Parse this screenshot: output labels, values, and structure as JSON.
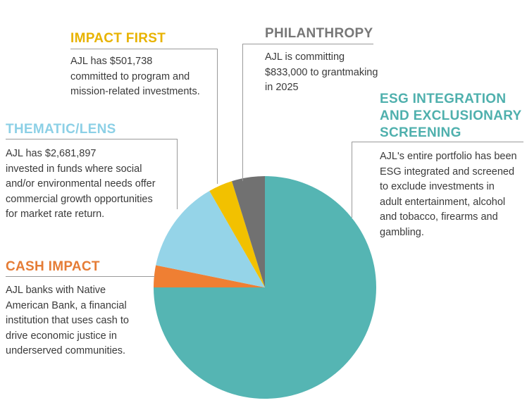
{
  "colors": {
    "esg": "#55b5b3",
    "cash": "#ef7f33",
    "thematic": "#95d4e8",
    "impact": "#f2c100",
    "philanthropy": "#717171"
  },
  "sections": {
    "impact_first": {
      "heading": "IMPACT FIRST",
      "lines": [
        "AJL has $501,738",
        "committed to program and",
        "mission-related investments."
      ]
    },
    "philanthropy": {
      "heading": "PHILANTHROPY",
      "lines": [
        "AJL is committing",
        "$833,000 to grantmaking",
        "in 2025"
      ]
    },
    "esg": {
      "heading_lines": [
        "ESG INTEGRATION",
        "AND EXCLUSIONARY",
        "SCREENING"
      ],
      "lines": [
        "AJL's entire portfolio has been",
        "ESG integrated and screened",
        "to exclude investments in",
        "adult entertainment, alcohol",
        "and tobacco, firearms and",
        "gambling."
      ]
    },
    "thematic": {
      "heading": "THEMATIC/LENS",
      "lines": [
        "AJL has $2,681,897",
        "invested in funds where social",
        "and/or environmental needs offer",
        "commercial growth opportunities",
        "for market rate return."
      ]
    },
    "cash": {
      "heading": "CASH IMPACT",
      "lines": [
        "AJL banks with Native",
        "American Bank, a financial",
        "institution that uses cash to",
        "drive economic justice in",
        "underserved communities."
      ]
    }
  },
  "chart_data": {
    "type": "pie",
    "start_angle_deg": 0,
    "direction": "clockwise",
    "slices": [
      {
        "label": "ESG INTEGRATION AND EXCLUSIONARY SCREENING",
        "value": 0.75,
        "color": "#55b5b3"
      },
      {
        "label": "CASH IMPACT",
        "value": 0.032,
        "color": "#ef7f33"
      },
      {
        "label": "THEMATIC/LENS",
        "value": 0.135,
        "color": "#95d4e8"
      },
      {
        "label": "IMPACT FIRST",
        "value": 0.035,
        "color": "#f2c100"
      },
      {
        "label": "PHILANTHROPY",
        "value": 0.048,
        "color": "#717171"
      }
    ]
  }
}
